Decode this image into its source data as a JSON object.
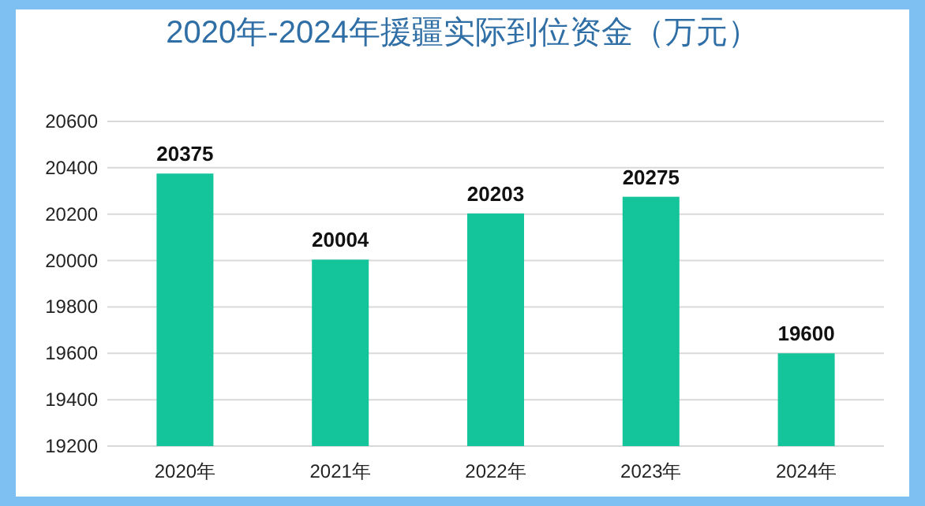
{
  "chart_data": {
    "type": "bar",
    "title": "2020年-2024年援疆实际到位资金（万元）",
    "categories": [
      "2020年",
      "2021年",
      "2022年",
      "2023年",
      "2024年"
    ],
    "values": [
      20375,
      20004,
      20203,
      20275,
      19600
    ],
    "color": "#14c49a",
    "ylim": [
      19200,
      20600
    ],
    "yticks": [
      19200,
      19400,
      19600,
      19800,
      20000,
      20200,
      20400,
      20600
    ],
    "grid": "y",
    "data_labels": true
  }
}
